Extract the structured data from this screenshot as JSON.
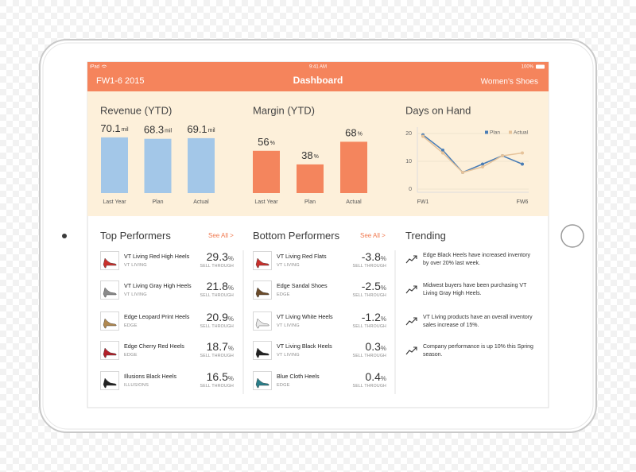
{
  "status_bar": {
    "device": "iPad",
    "time": "9:41 AM",
    "battery": "100%"
  },
  "header": {
    "left": "FW1-6 2015",
    "title": "Dashboard",
    "right": "Women's Shoes"
  },
  "chart_data": [
    {
      "type": "bar",
      "title": "Revenue (YTD)",
      "categories": [
        "Last Year",
        "Plan",
        "Actual"
      ],
      "values": [
        70.1,
        68.3,
        69.1
      ],
      "unit": "mil",
      "color": "#a3c7e8"
    },
    {
      "type": "bar",
      "title": "Margin (YTD)",
      "categories": [
        "Last Year",
        "Plan",
        "Actual"
      ],
      "values": [
        56,
        38,
        68
      ],
      "unit": "%",
      "color": "#f4855d"
    },
    {
      "type": "line",
      "title": "Days on Hand",
      "categories": [
        "FW1",
        null,
        null,
        null,
        null,
        "FW6"
      ],
      "series": [
        {
          "name": "Plan",
          "color": "#4a7db5",
          "values": [
            19.5,
            14,
            6,
            9,
            12,
            9
          ]
        },
        {
          "name": "Actual",
          "color": "#e6c39a",
          "values": [
            19,
            13,
            6,
            8,
            12,
            13
          ]
        }
      ],
      "ylim": [
        0,
        20
      ],
      "yticks": [
        0,
        10,
        20
      ],
      "grid": true,
      "legend": "top-right"
    }
  ],
  "top_performers": {
    "title": "Top Performers",
    "link": "See All >",
    "metric_label": "SELL THROUGH",
    "unit": "%",
    "items": [
      {
        "name": "VT Living Red High Heels",
        "brand": "VT LIVING",
        "value": 29.3
      },
      {
        "name": "VT Living Gray High Heels",
        "brand": "VT LIVING",
        "value": 21.8
      },
      {
        "name": "Edge Leopard Print Heels",
        "brand": "EDGE",
        "value": 20.9
      },
      {
        "name": "Edge Cherry Red Heels",
        "brand": "EDGE",
        "value": 18.7
      },
      {
        "name": "Illusions Black Heels",
        "brand": "ILLUSIONS",
        "value": 16.5
      }
    ]
  },
  "bottom_performers": {
    "title": "Bottom Performers",
    "link": "See All >",
    "metric_label": "SELL THROUGH",
    "unit": "%",
    "items": [
      {
        "name": "VT Living Red Flats",
        "brand": "VT LIVING",
        "value": -3.8
      },
      {
        "name": "Edge Sandal Shoes",
        "brand": "EDGE",
        "value": -2.5
      },
      {
        "name": "VT Living White Heels",
        "brand": "VT LIVING",
        "value": -1.2
      },
      {
        "name": "VT Living Black Heels",
        "brand": "VT LIVING",
        "value": 0.3
      },
      {
        "name": "Blue Cloth Heels",
        "brand": "EDGE",
        "value": 0.4
      }
    ]
  },
  "trending": {
    "title": "Trending",
    "items": [
      "Edge Black Heels have increased inventory by over 20% last week.",
      "Midwest buyers have been purchasing VT Living Gray High Heels.",
      "VT Living products have an overall inventory sales increase of 15%.",
      "Company performance is up 10% this Spring season."
    ]
  }
}
